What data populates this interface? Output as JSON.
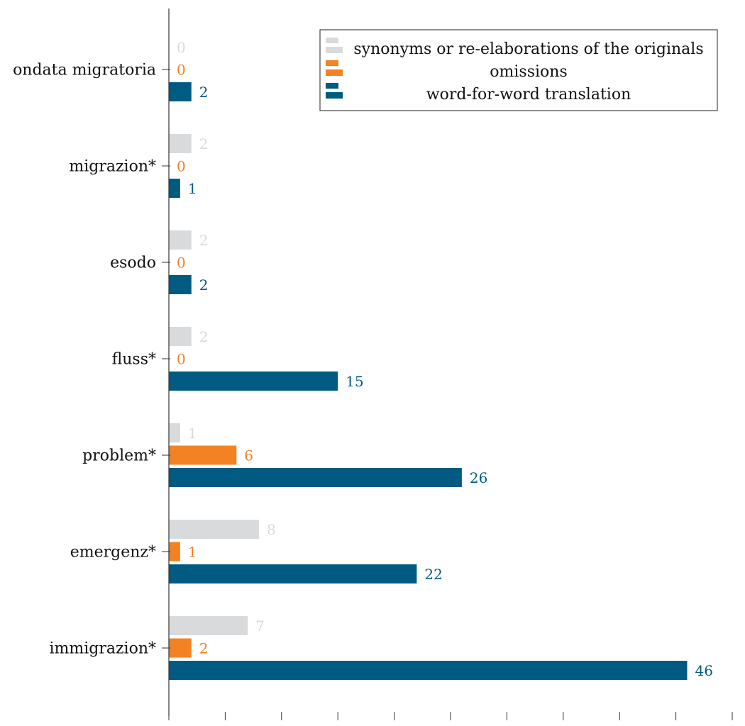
{
  "chart_data": {
    "type": "bar",
    "orientation": "horizontal",
    "categories": [
      "ondata migratoria",
      "migrazion*",
      "esodo",
      "fluss*",
      "problem*",
      "emergenz*",
      "immigrazion*"
    ],
    "series": [
      {
        "name": "synonyms or re-elaborations of the originals",
        "color": "#d9dadb",
        "values": [
          0,
          2,
          2,
          2,
          1,
          8,
          7
        ]
      },
      {
        "name": "omissions",
        "color": "#f28224",
        "values": [
          0,
          0,
          0,
          0,
          6,
          1,
          2
        ]
      },
      {
        "name": "word-for-word translation",
        "color": "#005a82",
        "values": [
          2,
          1,
          2,
          15,
          26,
          22,
          46
        ]
      }
    ],
    "xlim": [
      0,
      50
    ],
    "xticks": [
      0,
      5,
      10,
      15,
      20,
      25,
      30,
      35,
      40,
      45,
      50
    ],
    "data_labels": true,
    "legend_position": "top-right",
    "grid": false
  }
}
